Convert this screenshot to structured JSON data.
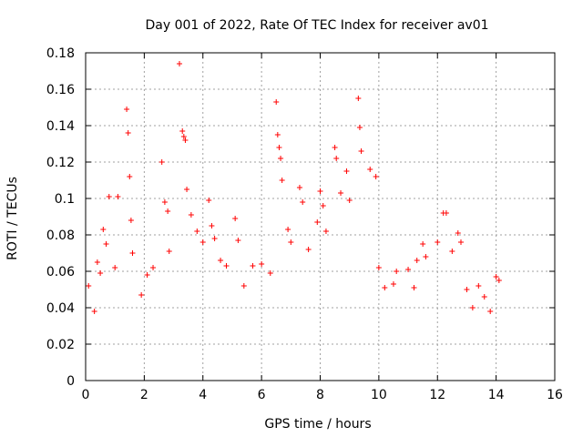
{
  "chart_data": {
    "type": "scatter",
    "title": "Day 001 of 2022, Rate Of TEC Index for receiver av01",
    "xlabel": "GPS time / hours",
    "ylabel": "ROTI / TECUs",
    "xlim": [
      0,
      16
    ],
    "ylim": [
      0,
      0.18
    ],
    "grid": true,
    "marker": "+",
    "marker_color": "#ff0000",
    "x_ticks": [
      "0",
      "2",
      "4",
      "6",
      "8",
      "10",
      "12",
      "14",
      "16"
    ],
    "y_ticks": [
      "0",
      "0.02",
      "0.04",
      "0.06",
      "0.08",
      "0.1",
      "0.12",
      "0.14",
      "0.16",
      "0.18"
    ],
    "series": [
      {
        "name": "av01",
        "color": "#ff0000",
        "x": [
          0.1,
          0.3,
          0.4,
          0.5,
          0.6,
          0.7,
          0.8,
          1.0,
          1.1,
          1.4,
          1.45,
          1.5,
          1.55,
          1.6,
          1.9,
          2.1,
          2.3,
          2.6,
          2.7,
          2.8,
          2.85,
          3.2,
          3.3,
          3.35,
          3.4,
          3.45,
          3.6,
          3.8,
          4.0,
          4.2,
          4.3,
          4.4,
          4.6,
          4.8,
          5.1,
          5.2,
          5.4,
          5.7,
          6.0,
          6.3,
          6.5,
          6.55,
          6.6,
          6.65,
          6.7,
          6.9,
          7.0,
          7.3,
          7.4,
          7.6,
          7.9,
          8.0,
          8.1,
          8.2,
          8.5,
          8.55,
          8.7,
          8.9,
          9.0,
          9.3,
          9.35,
          9.4,
          9.7,
          9.9,
          10.0,
          10.2,
          10.5,
          10.6,
          11.0,
          11.2,
          11.3,
          11.5,
          11.6,
          12.0,
          12.2,
          12.3,
          12.5,
          12.7,
          12.8,
          13.0,
          13.2,
          13.4,
          13.6,
          13.8,
          14.0,
          14.1
        ],
        "y": [
          0.052,
          0.038,
          0.065,
          0.059,
          0.083,
          0.075,
          0.101,
          0.062,
          0.101,
          0.149,
          0.136,
          0.112,
          0.088,
          0.07,
          0.047,
          0.058,
          0.062,
          0.12,
          0.098,
          0.093,
          0.071,
          0.174,
          0.137,
          0.134,
          0.132,
          0.105,
          0.091,
          0.082,
          0.076,
          0.099,
          0.085,
          0.078,
          0.066,
          0.063,
          0.089,
          0.077,
          0.052,
          0.063,
          0.064,
          0.059,
          0.153,
          0.135,
          0.128,
          0.122,
          0.11,
          0.083,
          0.076,
          0.106,
          0.098,
          0.072,
          0.087,
          0.104,
          0.096,
          0.082,
          0.128,
          0.122,
          0.103,
          0.115,
          0.099,
          0.155,
          0.139,
          0.126,
          0.116,
          0.112,
          0.062,
          0.051,
          0.053,
          0.06,
          0.061,
          0.051,
          0.066,
          0.075,
          0.068,
          0.076,
          0.092,
          0.092,
          0.071,
          0.081,
          0.076,
          0.05,
          0.04,
          0.052,
          0.046,
          0.038,
          0.057,
          0.055
        ]
      }
    ]
  }
}
